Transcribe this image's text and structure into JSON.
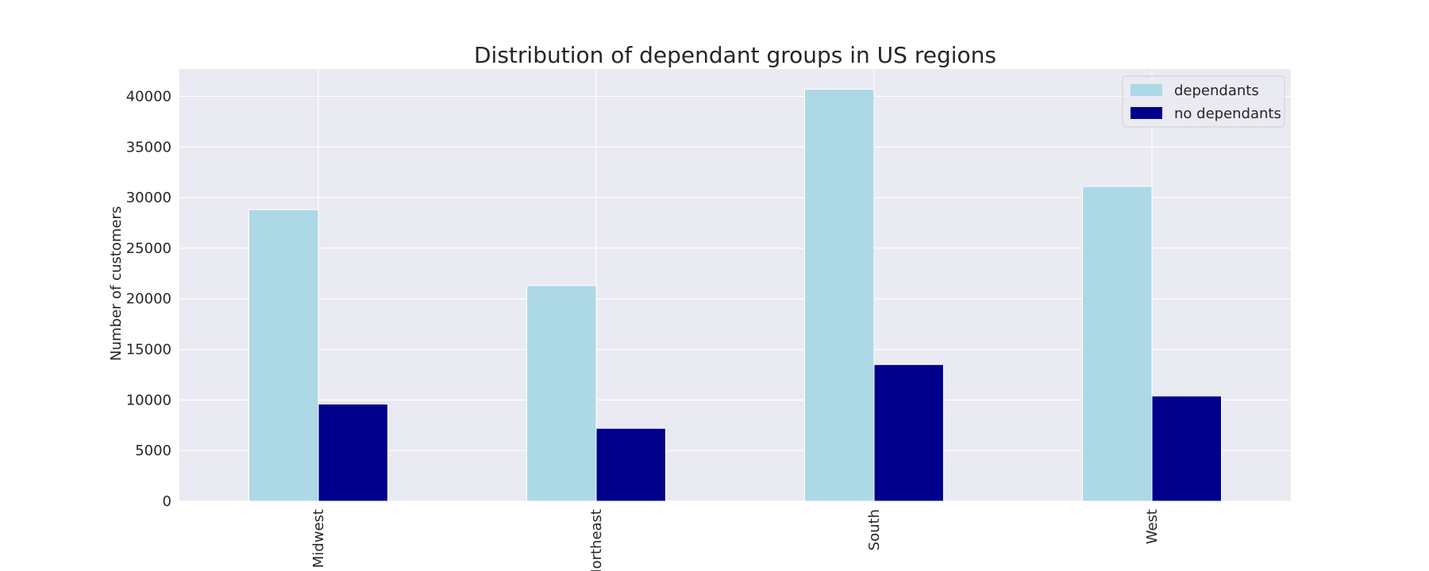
{
  "chart_data": {
    "type": "bar",
    "title": "Distribution of dependant groups in US regions",
    "xlabel": "",
    "ylabel": "Number of customers",
    "categories": [
      "Midwest",
      "Northeast",
      "South",
      "West"
    ],
    "series": [
      {
        "name": "dependants",
        "values": [
          28800,
          21300,
          40700,
          31100
        ],
        "color": "#add8e6"
      },
      {
        "name": "no dependants",
        "values": [
          9600,
          7200,
          13500,
          10400
        ],
        "color": "#00008b"
      }
    ],
    "ylim": [
      0,
      42700
    ],
    "yticks": [
      0,
      5000,
      10000,
      15000,
      20000,
      25000,
      30000,
      35000,
      40000
    ],
    "grid": true,
    "legend": "top-right",
    "colors": {
      "plot_background": "#eaeaf2",
      "grid": "#ffffff",
      "text": "#262626"
    }
  }
}
